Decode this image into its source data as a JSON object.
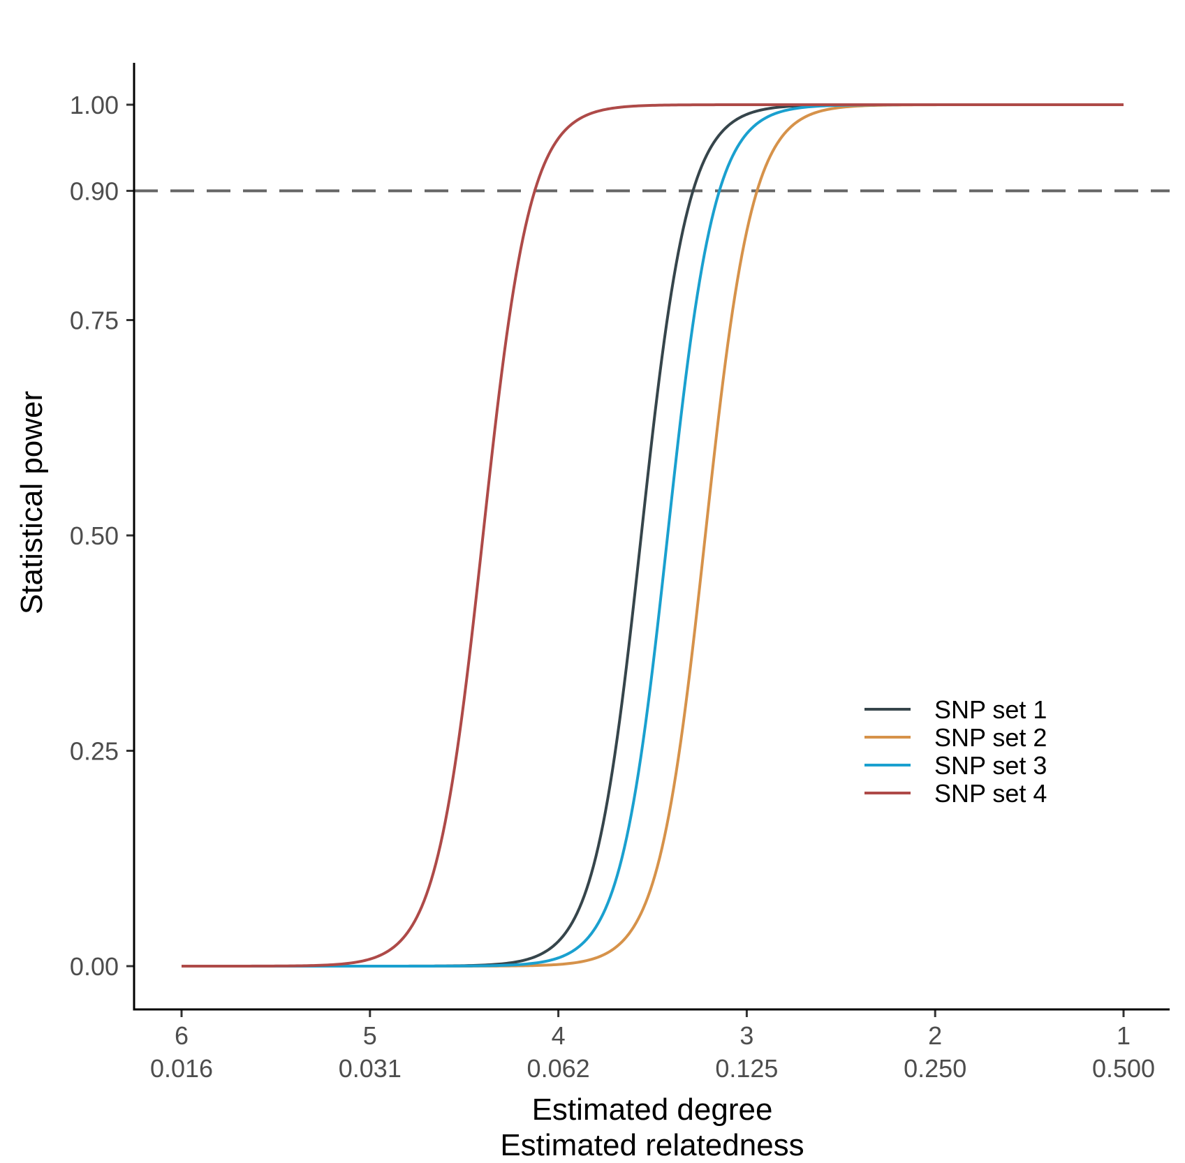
{
  "chart_data": {
    "type": "line",
    "xlabel": [
      "Estimated degree",
      "Estimated relatedness"
    ],
    "ylabel": "Statistical power",
    "x_axis": {
      "range": [
        6,
        1
      ],
      "ticks": [
        {
          "degree": 6,
          "label_degree": "6",
          "label_relatedness": "0.016"
        },
        {
          "degree": 5,
          "label_degree": "5",
          "label_relatedness": "0.031"
        },
        {
          "degree": 4,
          "label_degree": "4",
          "label_relatedness": "0.062"
        },
        {
          "degree": 3,
          "label_degree": "3",
          "label_relatedness": "0.125"
        },
        {
          "degree": 2,
          "label_degree": "2",
          "label_relatedness": "0.250"
        },
        {
          "degree": 1,
          "label_degree": "1",
          "label_relatedness": "0.500"
        }
      ]
    },
    "y_axis": {
      "range": [
        -0.05,
        1.05
      ],
      "ticks": [
        {
          "value": 0.0,
          "label": "0.00"
        },
        {
          "value": 0.25,
          "label": "0.25"
        },
        {
          "value": 0.5,
          "label": "0.50"
        },
        {
          "value": 0.75,
          "label": "0.75"
        },
        {
          "value": 0.9,
          "label": "0.90"
        },
        {
          "value": 1.0,
          "label": "1.00"
        }
      ]
    },
    "reference_line": {
      "y": 0.9,
      "style": "dashed",
      "color": "#666666"
    },
    "grid": false,
    "legend_position": "right",
    "series": [
      {
        "name": "SNP set 1",
        "color": "#36454b",
        "midpoint_degree": 3.56,
        "steepness": 8.0
      },
      {
        "name": "SNP set 2",
        "color": "#d6924a",
        "midpoint_degree": 3.22,
        "steepness": 8.0
      },
      {
        "name": "SNP set 3",
        "color": "#1aa0cf",
        "midpoint_degree": 3.42,
        "steepness": 8.0
      },
      {
        "name": "SNP set 4",
        "color": "#ae4a48",
        "midpoint_degree": 4.4,
        "steepness": 8.0
      }
    ]
  }
}
